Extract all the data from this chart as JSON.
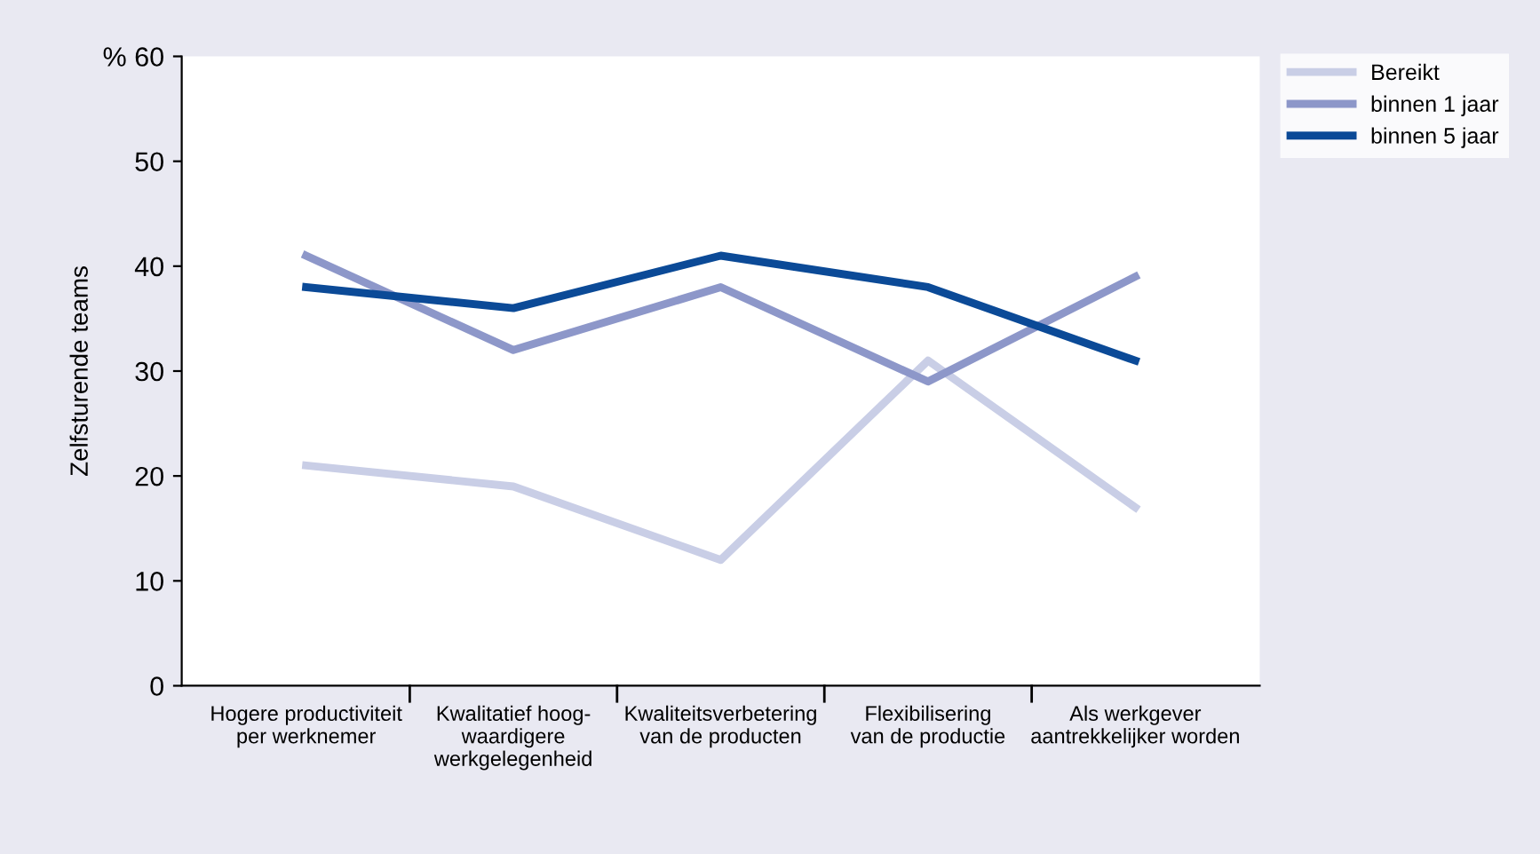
{
  "chart_data": {
    "type": "line",
    "ylabel": "Zelfsturende teams",
    "categories": [
      "Hogere productiviteit\nper werknemer",
      "Kwalitatief hoog-\nwaardigere\nwerkgelegenheid",
      "Kwaliteitsverbetering\nvan de producten",
      "Flexibilisering\nvan de productie",
      "Als werkgever\naantrekkelijker worden"
    ],
    "series": [
      {
        "name": "Bereikt",
        "color": "#c9cee6",
        "values": [
          21,
          19,
          12,
          31,
          17
        ]
      },
      {
        "name": "binnen 1 jaar",
        "color": "#8d97c9",
        "values": [
          41,
          32,
          38,
          29,
          39
        ]
      },
      {
        "name": "binnen 5 jaar",
        "color": "#0b4a97",
        "values": [
          38,
          36,
          41,
          38,
          31
        ]
      }
    ],
    "ylim": [
      0,
      60
    ],
    "yticks": [
      0,
      10,
      20,
      30,
      40,
      50,
      {
        "value": 60,
        "label": "% 60"
      }
    ],
    "legend": "top right",
    "grid": false,
    "marker": "none",
    "line_style": "solid"
  }
}
